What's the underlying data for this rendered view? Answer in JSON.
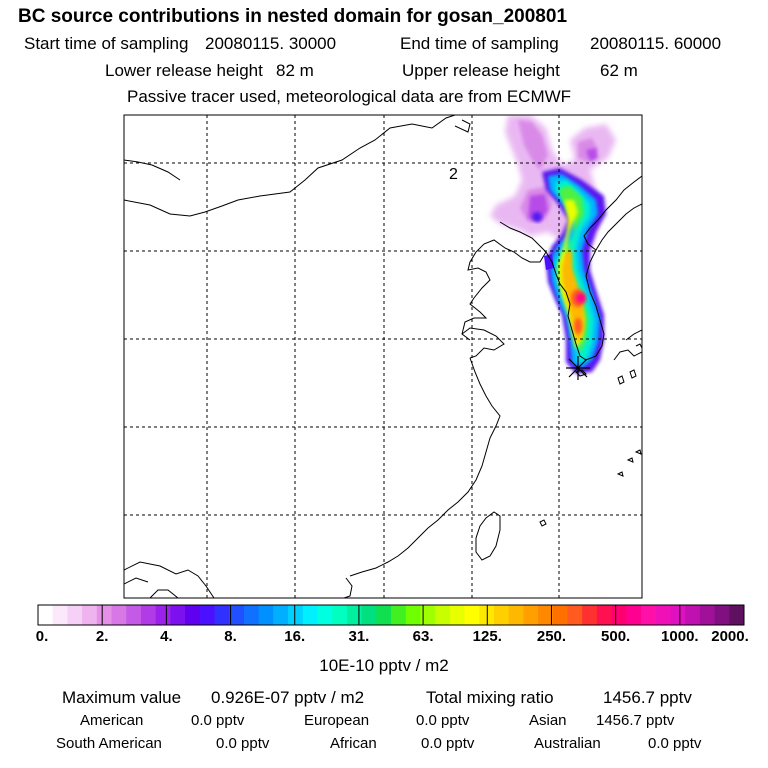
{
  "title": "BC  source contributions in nested domain for gosan_200801",
  "sampling": {
    "start_label": "Start time of sampling",
    "start_value": "20080115. 30000",
    "end_label": "End time of sampling",
    "end_value": "20080115. 60000"
  },
  "release": {
    "lower_label": "Lower release height",
    "lower_value": "82 m",
    "upper_label": "Upper release height",
    "upper_value": "62 m"
  },
  "note": "Passive tracer used, meteorological data are from ECMWF",
  "map": {
    "region_label": "2",
    "marker": "receptor-asterisk"
  },
  "colorbar": {
    "labels": [
      "0.",
      "2.",
      "4.",
      "8.",
      "16.",
      "31.",
      "63.",
      "125.",
      "250.",
      "500.",
      "1000.",
      "2000."
    ],
    "colors": [
      "#ffffff",
      "#fbe8fb",
      "#f6d0f6",
      "#efb3ef",
      "#e591e8",
      "#d877e6",
      "#c45ae6",
      "#b23be8",
      "#9b22eb",
      "#7d10ee",
      "#6000f0",
      "#4a10ff",
      "#3030ff",
      "#2050ff",
      "#1070ff",
      "#0090ff",
      "#00b0ff",
      "#00d0ff",
      "#00f0ff",
      "#00ffe0",
      "#00ffc0",
      "#00f0a0",
      "#00e080",
      "#10e050",
      "#40f020",
      "#70ff00",
      "#a0ff00",
      "#c8ff00",
      "#e8ff00",
      "#ffff00",
      "#ffe800",
      "#ffd000",
      "#ffb800",
      "#ffa000",
      "#ff8800",
      "#ff7000",
      "#ff5a20",
      "#ff3030",
      "#ff1050",
      "#ff0070",
      "#ff0090",
      "#ff10a8",
      "#f010b8",
      "#e010c0",
      "#c010b0",
      "#a01098",
      "#801080",
      "#601060"
    ],
    "units": "10E-10 pptv / m2"
  },
  "stats": {
    "max_label": "Maximum value",
    "max_value": "0.926E-07 pptv / m2",
    "total_label": "Total mixing ratio",
    "total_value": "1456.7 pptv"
  },
  "regions": [
    {
      "name": "American",
      "value": "0.0 pptv"
    },
    {
      "name": "European",
      "value": "0.0 pptv"
    },
    {
      "name": "Asian",
      "value": "1456.7 pptv"
    },
    {
      "name": "South American",
      "value": "0.0 pptv"
    },
    {
      "name": "African",
      "value": "0.0 pptv"
    },
    {
      "name": "Australian",
      "value": "0.0 pptv"
    }
  ]
}
